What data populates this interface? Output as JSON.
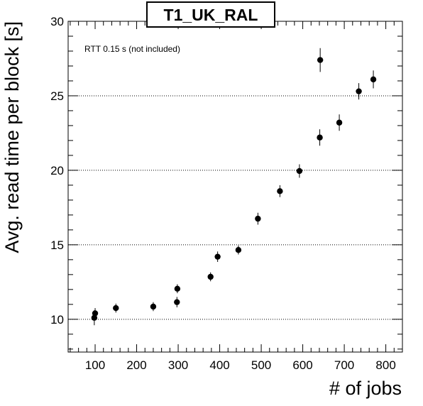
{
  "chart_data": {
    "type": "scatter",
    "title": "T1_UK_RAL",
    "xlabel": "# of jobs",
    "ylabel": "Avg. read time per block [s]",
    "annotation": "RTT 0.15 s (not included)",
    "xlim": [
      35,
      840
    ],
    "ylim": [
      7.8,
      30
    ],
    "x_ticks": [
      100,
      200,
      300,
      400,
      500,
      600,
      700,
      800
    ],
    "y_ticks": [
      10,
      15,
      20,
      25,
      30
    ],
    "grid_y": true,
    "grid_x": false,
    "points": [
      {
        "x": 98,
        "y": 10.1,
        "err": 0.5
      },
      {
        "x": 100,
        "y": 10.4,
        "err": 0.35
      },
      {
        "x": 150,
        "y": 10.75,
        "err": 0.3
      },
      {
        "x": 240,
        "y": 10.85,
        "err": 0.3
      },
      {
        "x": 297,
        "y": 11.15,
        "err": 0.35
      },
      {
        "x": 298,
        "y": 12.05,
        "err": 0.3
      },
      {
        "x": 378,
        "y": 12.85,
        "err": 0.3
      },
      {
        "x": 395,
        "y": 14.2,
        "err": 0.35
      },
      {
        "x": 445,
        "y": 14.65,
        "err": 0.3
      },
      {
        "x": 492,
        "y": 16.75,
        "err": 0.4
      },
      {
        "x": 545,
        "y": 18.6,
        "err": 0.4
      },
      {
        "x": 592,
        "y": 19.95,
        "err": 0.45
      },
      {
        "x": 641,
        "y": 22.2,
        "err": 0.55
      },
      {
        "x": 642,
        "y": 27.4,
        "err": 0.8
      },
      {
        "x": 688,
        "y": 23.2,
        "err": 0.55
      },
      {
        "x": 735,
        "y": 25.3,
        "err": 0.55
      },
      {
        "x": 770,
        "y": 26.1,
        "err": 0.6
      }
    ]
  }
}
